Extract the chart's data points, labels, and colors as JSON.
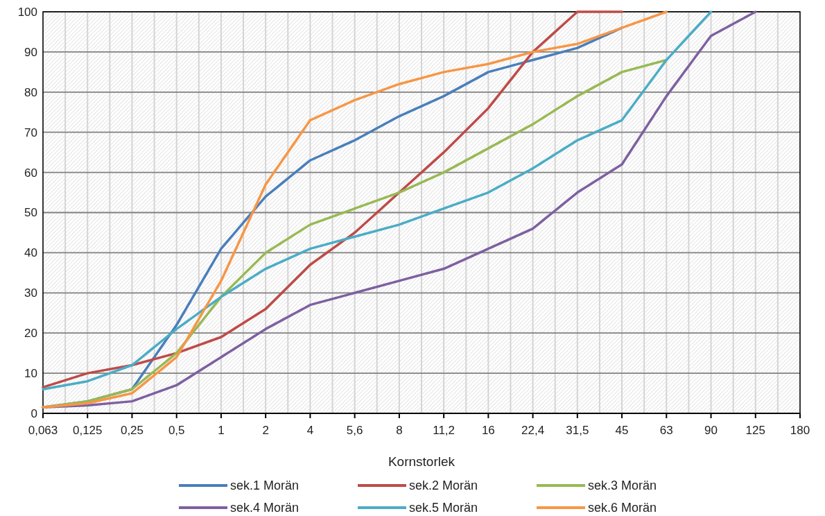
{
  "chart_data": {
    "type": "line",
    "xlabel": "Kornstorlek",
    "categories": [
      "0,063",
      "0,125",
      "0,25",
      "0,5",
      "1",
      "2",
      "4",
      "5,6",
      "8",
      "11,2",
      "16",
      "22,4",
      "31,5",
      "45",
      "63",
      "90",
      "125",
      "180"
    ],
    "ylim": [
      0,
      100
    ],
    "yticks": [
      0,
      10,
      20,
      30,
      40,
      50,
      60,
      70,
      80,
      90,
      100
    ],
    "grid": true,
    "legend": "bottom",
    "marker": "none",
    "line_style": "solid",
    "series": [
      {
        "name": "sek.1 Morän",
        "color": "#4a7ebb",
        "values": [
          1.5,
          3,
          6,
          22,
          41,
          54,
          63,
          68,
          74,
          79,
          85,
          88,
          91,
          96,
          null,
          null,
          null,
          null
        ]
      },
      {
        "name": "sek.2 Morän",
        "color": "#be4b48",
        "values": [
          6.5,
          10,
          12,
          15,
          19,
          26,
          37,
          45,
          55,
          65,
          76,
          90,
          100,
          100,
          null,
          null,
          null,
          null
        ]
      },
      {
        "name": "sek.3 Morän",
        "color": "#98b954",
        "values": [
          1.5,
          3,
          6,
          15,
          29,
          40,
          47,
          51,
          55,
          60,
          66,
          72,
          79,
          85,
          88,
          null,
          null,
          null
        ]
      },
      {
        "name": "sek.4 Morän",
        "color": "#7d60a0",
        "values": [
          1.5,
          2,
          3,
          7,
          14,
          21,
          27,
          30,
          33,
          36,
          41,
          46,
          55,
          62,
          79,
          94,
          100,
          null
        ]
      },
      {
        "name": "sek.5 Morän",
        "color": "#4bacc6",
        "values": [
          6,
          8,
          12,
          21,
          29,
          36,
          41,
          44,
          47,
          51,
          55,
          61,
          68,
          73,
          88,
          100,
          null,
          null
        ]
      },
      {
        "name": "sek.6 Morän",
        "color": "#f79646",
        "values": [
          1.5,
          2.5,
          5,
          14,
          33,
          57,
          73,
          78,
          82,
          85,
          87,
          90,
          92,
          96,
          100,
          null,
          null,
          null
        ]
      }
    ]
  }
}
